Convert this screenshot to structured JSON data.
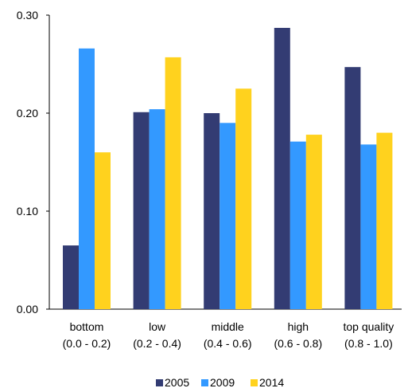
{
  "chart_data": {
    "type": "bar",
    "categories": [
      [
        "bottom",
        "(0.0 - 0.2)"
      ],
      [
        "low",
        "(0.2 - 0.4)"
      ],
      [
        "middle",
        "(0.4 - 0.6)"
      ],
      [
        "high",
        "(0.6 - 0.8)"
      ],
      [
        "top quality",
        "(0.8 - 1.0)"
      ]
    ],
    "series": [
      {
        "name": "2005",
        "color": "#333c73",
        "values": [
          0.065,
          0.201,
          0.2,
          0.287,
          0.247
        ]
      },
      {
        "name": "2009",
        "color": "#3399ff",
        "values": [
          0.266,
          0.204,
          0.19,
          0.171,
          0.168
        ]
      },
      {
        "name": "2014",
        "color": "#ffd21e",
        "values": [
          0.16,
          0.257,
          0.225,
          0.178,
          0.18
        ]
      }
    ],
    "ylim": [
      0,
      0.3
    ],
    "yticks": [
      "0.00",
      "0.10",
      "0.20",
      "0.30"
    ],
    "ytick_values": [
      0,
      0.1,
      0.2,
      0.3
    ],
    "title": "",
    "xlabel": "",
    "ylabel": "",
    "legend_position": "bottom",
    "grid": false
  }
}
